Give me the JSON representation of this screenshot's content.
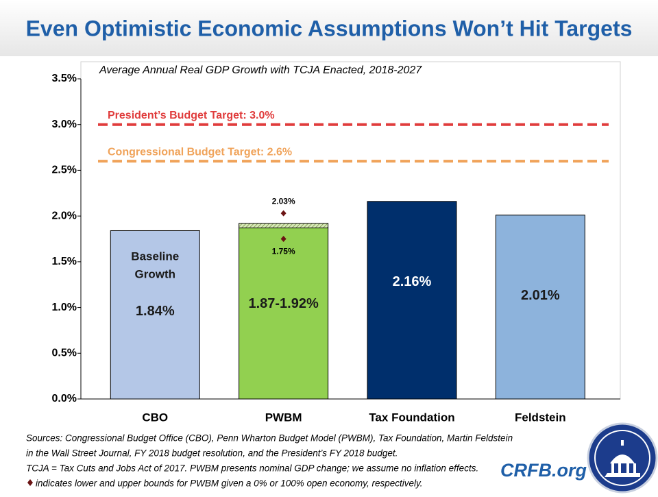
{
  "header": {
    "title": "Even Optimistic Economic Assumptions Won’t Hit Targets"
  },
  "chart_data": {
    "type": "bar",
    "subtitle": "Average Annual Real GDP Growth with TCJA Enacted, 2018-2027",
    "categories": [
      "CBO",
      "PWBM",
      "Tax Foundation",
      "Feldstein"
    ],
    "values": [
      1.84,
      1.87,
      2.16,
      2.01
    ],
    "range_high": [
      null,
      1.92,
      null,
      null
    ],
    "value_labels": [
      "1.84%",
      "1.87-1.92%",
      "2.16%",
      "2.01%"
    ],
    "colors": [
      "#b4c7e7",
      "#92d050",
      "#002f6c",
      "#8db3dc"
    ],
    "annotation": [
      "Baseline",
      "Growth"
    ],
    "bounds": {
      "values": [
        1.75,
        2.03
      ],
      "value_labels": [
        "1.75%",
        "2.03%"
      ],
      "color": "#6b1414"
    },
    "reference_lines": [
      {
        "label": "President’s Budget Target: 3.0%",
        "value": 3.0,
        "color": "#e03c3c"
      },
      {
        "label": "Congressional Budget Target: 2.6%",
        "value": 2.6,
        "color": "#f0a35a"
      }
    ],
    "ylim": [
      0,
      3.5
    ],
    "yticks": [
      {
        "value": 0,
        "label": "0.0%"
      },
      {
        "value": 0.5,
        "label": "0.5%"
      },
      {
        "value": 1,
        "label": "1.0%"
      },
      {
        "value": 1.5,
        "label": "1.5%"
      },
      {
        "value": 2,
        "label": "2.0%"
      },
      {
        "value": 2.5,
        "label": "2.5%"
      },
      {
        "value": 3,
        "label": "3.0%"
      },
      {
        "value": 3.5,
        "label": "3.5%"
      }
    ]
  },
  "notes": [
    "Sources: Congressional Budget Office (CBO), Penn Wharton Budget Model (PWBM), Tax Foundation, Martin Feldstein",
    "in the Wall Street Journal, FY 2018 budget resolution, and the President’s FY 2018 budget.",
    "TCJA = Tax Cuts and Jobs Act of 2017. PWBM presents nominal GDP change; we assume no inflation effects.",
    "indicates lower and upper bounds for PWBM given a 0% or 100% open economy, respectively."
  ],
  "brand": "CRFB.org"
}
